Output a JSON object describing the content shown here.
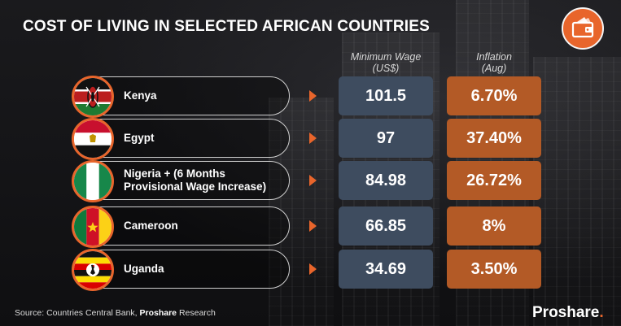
{
  "title": "COST OF LIVING IN SELECTED AFRICAN COUNTRIES",
  "columns": {
    "wage_line1": "Minimum Wage",
    "wage_line2": "(US$)",
    "inflation_line1": "Inflation",
    "inflation_line2": "(Aug)"
  },
  "rows": [
    {
      "country": "Kenya",
      "wage": "101.5",
      "inflation": "6.70%",
      "flag_icon": "kenya-flag-icon"
    },
    {
      "country": "Egypt",
      "wage": "97",
      "inflation": "37.40%",
      "flag_icon": "egypt-flag-icon"
    },
    {
      "country": "Nigeria + (6 Months Provisional Wage Increase)",
      "wage": "84.98",
      "inflation": "26.72%",
      "flag_icon": "nigeria-flag-icon"
    },
    {
      "country": "Cameroon",
      "wage": "66.85",
      "inflation": "8%",
      "flag_icon": "cameroon-flag-icon"
    },
    {
      "country": "Uganda",
      "wage": "34.69",
      "inflation": "3.50%",
      "flag_icon": "uganda-flag-icon"
    }
  ],
  "source": {
    "prefix": "Source: Countries Central Bank, ",
    "bold": "Proshare",
    "suffix": " Research"
  },
  "brand": {
    "name": "Proshare",
    "dot": "."
  },
  "colors": {
    "accent": "#e8652b",
    "wage_box": "#3e4c5f",
    "inflation_box": "#b35a26"
  },
  "logo_icon": "wallet-icon"
}
